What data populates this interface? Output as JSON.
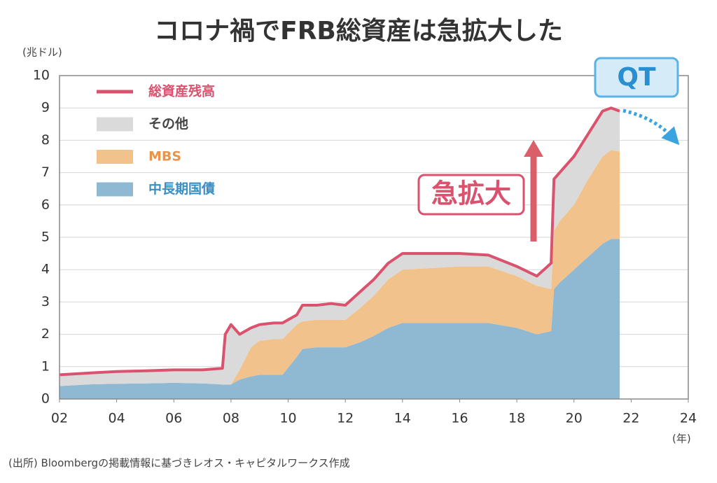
{
  "chart_data": {
    "type": "stacked-area",
    "title": "コロナ禍でFRB総資産は急拡大した",
    "y_unit": "(兆ドル)",
    "x_unit": "(年)",
    "source": "(出所) Bloombergの掲載情報に基づきレオス・キャピタルワークス作成",
    "annotations": [
      "急拡大",
      "QT"
    ],
    "x": [
      2,
      3,
      4,
      5,
      6,
      7,
      7.7,
      7.8,
      8,
      8.3,
      8.7,
      9,
      9.5,
      9.8,
      10.3,
      10.5,
      11,
      11.5,
      12,
      12.5,
      13,
      13.5,
      14,
      15,
      16,
      17,
      18,
      18.7,
      19.2,
      19.3,
      19.5,
      20,
      20.5,
      21,
      21.3,
      21.6
    ],
    "series": [
      {
        "name": "総資産残高",
        "type": "line",
        "color": "#d9526e",
        "values": [
          0.75,
          0.8,
          0.85,
          0.87,
          0.9,
          0.9,
          0.95,
          2.0,
          2.3,
          2.0,
          2.2,
          2.3,
          2.35,
          2.35,
          2.6,
          2.9,
          2.9,
          2.95,
          2.9,
          3.3,
          3.7,
          4.2,
          4.5,
          4.5,
          4.5,
          4.45,
          4.1,
          3.8,
          4.2,
          6.8,
          7.0,
          7.5,
          8.2,
          8.9,
          9.0,
          8.9
        ]
      },
      {
        "name": "その他",
        "type": "area",
        "color": "#dadada",
        "values": [
          0.35,
          0.35,
          0.38,
          0.39,
          0.4,
          0.42,
          0.5,
          1.55,
          1.85,
          1.1,
          0.6,
          0.5,
          0.5,
          0.5,
          0.3,
          0.5,
          0.45,
          0.5,
          0.45,
          0.5,
          0.5,
          0.5,
          0.5,
          0.45,
          0.4,
          0.35,
          0.3,
          0.3,
          0.8,
          1.6,
          1.5,
          1.5,
          1.4,
          1.4,
          1.3,
          1.25
        ]
      },
      {
        "name": "MBS",
        "type": "area",
        "color": "#f2c28c",
        "values": [
          0,
          0,
          0,
          0,
          0,
          0,
          0,
          0,
          0,
          0.3,
          0.9,
          1.05,
          1.1,
          1.1,
          1.0,
          0.85,
          0.85,
          0.85,
          0.85,
          1.05,
          1.25,
          1.5,
          1.65,
          1.7,
          1.75,
          1.75,
          1.6,
          1.5,
          1.3,
          1.8,
          1.9,
          2.0,
          2.4,
          2.7,
          2.75,
          2.7
        ]
      },
      {
        "name": "中長期国債",
        "type": "area",
        "color": "#8fb9d3",
        "values": [
          0.4,
          0.45,
          0.47,
          0.48,
          0.5,
          0.48,
          0.45,
          0.45,
          0.45,
          0.6,
          0.7,
          0.75,
          0.75,
          0.75,
          1.3,
          1.55,
          1.6,
          1.6,
          1.6,
          1.75,
          1.95,
          2.2,
          2.35,
          2.35,
          2.35,
          2.35,
          2.2,
          2.0,
          2.1,
          3.4,
          3.6,
          4.0,
          4.4,
          4.8,
          4.95,
          4.95
        ]
      }
    ],
    "xlim": [
      2,
      24
    ],
    "xticks": [
      {
        "value": 2,
        "label": "02"
      },
      {
        "value": 4,
        "label": "04"
      },
      {
        "value": 6,
        "label": "06"
      },
      {
        "value": 8,
        "label": "08"
      },
      10,
      12,
      14,
      16,
      18,
      20,
      22,
      24
    ],
    "ylim": [
      0,
      10
    ],
    "yticks": [
      0,
      1,
      2,
      3,
      4,
      5,
      6,
      7,
      8,
      9,
      10
    ],
    "grid": true
  }
}
